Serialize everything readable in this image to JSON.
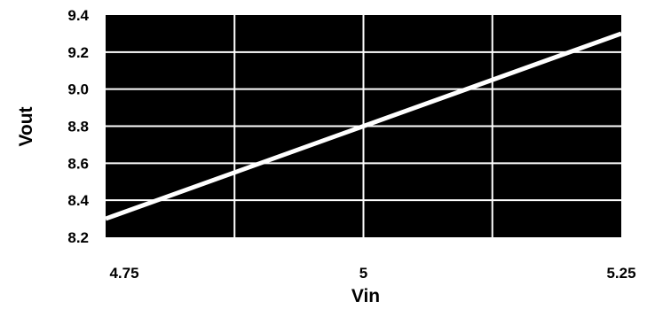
{
  "chart_data": {
    "type": "line",
    "xlabel": "Vin",
    "ylabel": "Vout",
    "xlim": [
      4.75,
      5.25
    ],
    "ylim": [
      8.2,
      9.4
    ],
    "x_ticks": [
      4.75,
      5,
      5.25
    ],
    "x_tick_labels": [
      "4.75",
      "5",
      "5.25"
    ],
    "x_gridlines": [
      4.875,
      5,
      5.125
    ],
    "y_ticks": [
      8.2,
      8.4,
      8.6,
      8.8,
      9.0,
      9.2,
      9.4
    ],
    "y_tick_labels": [
      "8.2",
      "8.4",
      "8.6",
      "8.8",
      "9.0",
      "9.2",
      "9.4"
    ],
    "grid": true,
    "plot_background": "#000000",
    "grid_color": "#ffffff",
    "line_color": "#ffffff",
    "series": [
      {
        "x": [
          4.75,
          5.0,
          5.25
        ],
        "y": [
          8.3,
          8.8,
          9.3
        ]
      }
    ]
  }
}
